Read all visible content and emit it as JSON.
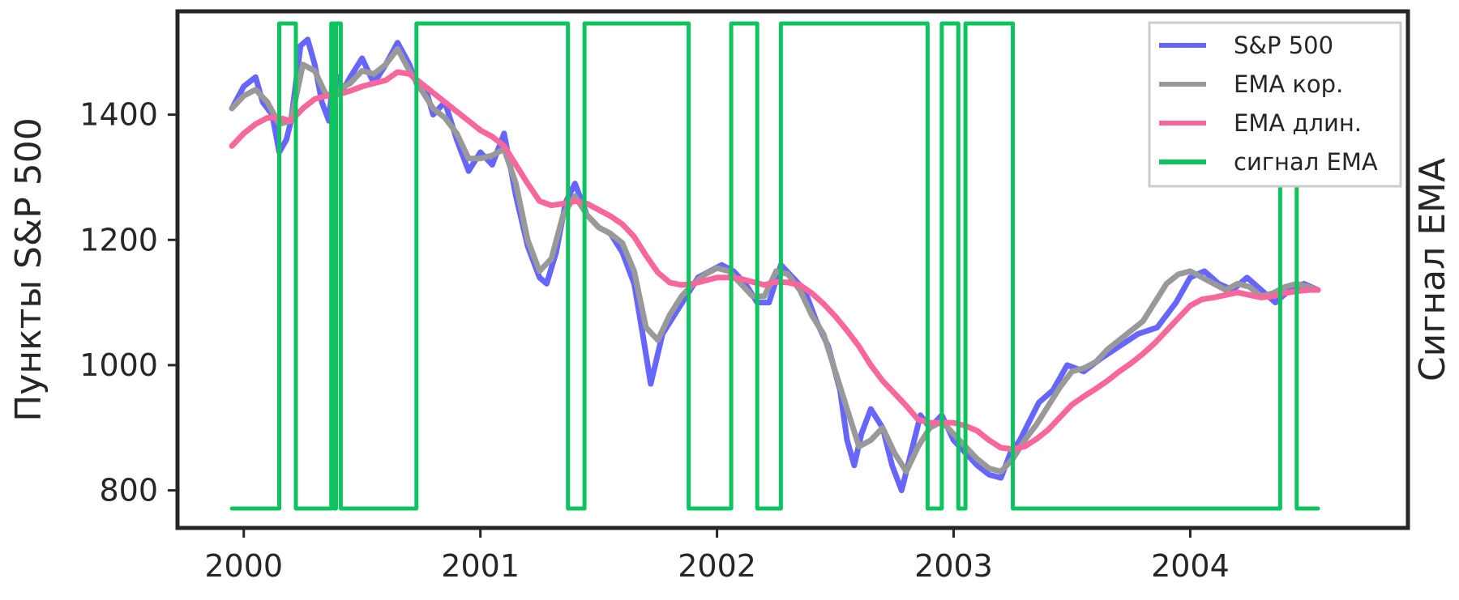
{
  "chart_data": {
    "type": "line",
    "title": "",
    "xlabel": "",
    "ylabel": "Пункты S&P 500",
    "y2label": "Сигнал EMA",
    "xlim": [
      1999.72,
      2004.92
    ],
    "ylim": [
      740,
      1565
    ],
    "x_ticks": [
      {
        "value": 2000,
        "label": "2000"
      },
      {
        "value": 2001,
        "label": "2001"
      },
      {
        "value": 2002,
        "label": "2002"
      },
      {
        "value": 2003,
        "label": "2003"
      },
      {
        "value": 2004,
        "label": "2004"
      }
    ],
    "y_ticks": [
      {
        "value": 800,
        "label": "800"
      },
      {
        "value": 1000,
        "label": "1000"
      },
      {
        "value": 1200,
        "label": "1200"
      },
      {
        "value": 1400,
        "label": "1400"
      }
    ],
    "grid": false,
    "legend_position": "top-right",
    "series": [
      {
        "name": "S&P 500",
        "color": "#6666ff",
        "x": [
          1999.95,
          2000.0,
          2000.05,
          2000.08,
          2000.12,
          2000.15,
          2000.18,
          2000.2,
          2000.24,
          2000.27,
          2000.3,
          2000.33,
          2000.36,
          2000.38,
          2000.42,
          2000.45,
          2000.5,
          2000.55,
          2000.6,
          2000.65,
          2000.7,
          2000.73,
          2000.77,
          2000.8,
          2000.85,
          2000.9,
          2000.95,
          2001.0,
          2001.05,
          2001.1,
          2001.15,
          2001.2,
          2001.25,
          2001.28,
          2001.32,
          2001.36,
          2001.4,
          2001.45,
          2001.5,
          2001.55,
          2001.6,
          2001.65,
          2001.69,
          2001.72,
          2001.77,
          2001.82,
          2001.87,
          2001.92,
          2001.97,
          2002.02,
          2002.07,
          2002.12,
          2002.17,
          2002.22,
          2002.27,
          2002.32,
          2002.37,
          2002.42,
          2002.47,
          2002.52,
          2002.55,
          2002.58,
          2002.61,
          2002.65,
          2002.7,
          2002.74,
          2002.78,
          2002.82,
          2002.86,
          2002.9,
          2002.95,
          2003.0,
          2003.05,
          2003.1,
          2003.15,
          2003.2,
          2003.24,
          2003.28,
          2003.32,
          2003.36,
          2003.42,
          2003.48,
          2003.55,
          2003.62,
          2003.7,
          2003.78,
          2003.86,
          2003.94,
          2004.0,
          2004.06,
          2004.12,
          2004.18,
          2004.24,
          2004.3,
          2004.36,
          2004.42,
          2004.48,
          2004.54
        ],
        "y": [
          1410,
          1445,
          1460,
          1420,
          1400,
          1340,
          1360,
          1390,
          1510,
          1520,
          1480,
          1420,
          1390,
          1470,
          1440,
          1460,
          1490,
          1450,
          1480,
          1515,
          1480,
          1450,
          1440,
          1400,
          1420,
          1360,
          1310,
          1340,
          1320,
          1370,
          1270,
          1190,
          1140,
          1130,
          1180,
          1260,
          1290,
          1240,
          1220,
          1210,
          1180,
          1130,
          1040,
          970,
          1050,
          1080,
          1110,
          1140,
          1150,
          1160,
          1150,
          1130,
          1100,
          1100,
          1160,
          1140,
          1120,
          1070,
          1030,
          960,
          880,
          840,
          890,
          930,
          900,
          840,
          800,
          860,
          920,
          900,
          920,
          880,
          860,
          840,
          825,
          820,
          860,
          880,
          910,
          940,
          960,
          1000,
          990,
          1010,
          1030,
          1050,
          1060,
          1100,
          1140,
          1150,
          1130,
          1120,
          1140,
          1120,
          1100,
          1120,
          1130,
          1120
        ]
      },
      {
        "name": "EMA кор.",
        "color": "#999999",
        "x": [
          1999.95,
          2000.0,
          2000.05,
          2000.1,
          2000.15,
          2000.2,
          2000.25,
          2000.3,
          2000.35,
          2000.4,
          2000.45,
          2000.5,
          2000.55,
          2000.6,
          2000.65,
          2000.7,
          2000.75,
          2000.8,
          2000.85,
          2000.9,
          2000.95,
          2001.0,
          2001.05,
          2001.1,
          2001.15,
          2001.2,
          2001.25,
          2001.3,
          2001.35,
          2001.4,
          2001.45,
          2001.5,
          2001.55,
          2001.6,
          2001.65,
          2001.7,
          2001.75,
          2001.8,
          2001.85,
          2001.9,
          2001.95,
          2002.0,
          2002.05,
          2002.1,
          2002.15,
          2002.2,
          2002.25,
          2002.3,
          2002.35,
          2002.4,
          2002.45,
          2002.5,
          2002.55,
          2002.6,
          2002.65,
          2002.7,
          2002.75,
          2002.8,
          2002.85,
          2002.9,
          2002.95,
          2003.0,
          2003.05,
          2003.1,
          2003.15,
          2003.2,
          2003.25,
          2003.3,
          2003.35,
          2003.4,
          2003.45,
          2003.5,
          2003.55,
          2003.6,
          2003.65,
          2003.7,
          2003.75,
          2003.8,
          2003.85,
          2003.9,
          2003.95,
          2004.0,
          2004.05,
          2004.1,
          2004.15,
          2004.2,
          2004.25,
          2004.3,
          2004.35,
          2004.4,
          2004.45,
          2004.5,
          2004.54
        ],
        "y": [
          1410,
          1430,
          1440,
          1420,
          1385,
          1390,
          1480,
          1470,
          1430,
          1440,
          1450,
          1470,
          1465,
          1480,
          1505,
          1470,
          1440,
          1410,
          1395,
          1370,
          1330,
          1330,
          1335,
          1345,
          1290,
          1200,
          1150,
          1170,
          1240,
          1270,
          1240,
          1220,
          1210,
          1195,
          1150,
          1060,
          1040,
          1080,
          1110,
          1130,
          1145,
          1155,
          1150,
          1130,
          1110,
          1110,
          1150,
          1145,
          1120,
          1080,
          1050,
          990,
          930,
          870,
          880,
          900,
          860,
          830,
          870,
          900,
          910,
          890,
          870,
          850,
          835,
          830,
          850,
          880,
          905,
          935,
          965,
          990,
          995,
          1005,
          1025,
          1040,
          1055,
          1070,
          1100,
          1130,
          1145,
          1150,
          1140,
          1130,
          1120,
          1130,
          1125,
          1110,
          1115,
          1125,
          1130,
          1125,
          1120
        ]
      },
      {
        "name": "EMA длин.",
        "color": "#f7679b",
        "x": [
          1999.95,
          2000.0,
          2000.05,
          2000.1,
          2000.15,
          2000.2,
          2000.25,
          2000.3,
          2000.35,
          2000.4,
          2000.45,
          2000.5,
          2000.55,
          2000.6,
          2000.65,
          2000.7,
          2000.75,
          2000.8,
          2000.85,
          2000.9,
          2000.95,
          2001.0,
          2001.05,
          2001.1,
          2001.15,
          2001.2,
          2001.25,
          2001.3,
          2001.35,
          2001.4,
          2001.45,
          2001.5,
          2001.55,
          2001.6,
          2001.65,
          2001.7,
          2001.75,
          2001.8,
          2001.85,
          2001.9,
          2001.95,
          2002.0,
          2002.05,
          2002.1,
          2002.15,
          2002.2,
          2002.25,
          2002.3,
          2002.35,
          2002.4,
          2002.45,
          2002.5,
          2002.55,
          2002.6,
          2002.65,
          2002.7,
          2002.75,
          2002.8,
          2002.85,
          2002.9,
          2002.95,
          2003.0,
          2003.05,
          2003.1,
          2003.15,
          2003.2,
          2003.25,
          2003.3,
          2003.35,
          2003.4,
          2003.45,
          2003.5,
          2003.55,
          2003.6,
          2003.65,
          2003.7,
          2003.75,
          2003.8,
          2003.85,
          2003.9,
          2003.95,
          2004.0,
          2004.05,
          2004.1,
          2004.15,
          2004.2,
          2004.25,
          2004.3,
          2004.35,
          2004.4,
          2004.45,
          2004.5,
          2004.54
        ],
        "y": [
          1350,
          1370,
          1385,
          1395,
          1395,
          1390,
          1410,
          1425,
          1430,
          1432,
          1438,
          1445,
          1450,
          1455,
          1468,
          1465,
          1450,
          1435,
          1420,
          1405,
          1390,
          1375,
          1365,
          1350,
          1320,
          1290,
          1262,
          1255,
          1258,
          1262,
          1258,
          1248,
          1238,
          1225,
          1205,
          1175,
          1148,
          1132,
          1128,
          1130,
          1135,
          1140,
          1140,
          1138,
          1133,
          1128,
          1133,
          1132,
          1128,
          1115,
          1098,
          1078,
          1055,
          1030,
          1000,
          975,
          955,
          935,
          913,
          908,
          908,
          908,
          903,
          895,
          880,
          868,
          866,
          870,
          882,
          897,
          917,
          937,
          950,
          962,
          975,
          990,
          1003,
          1018,
          1035,
          1055,
          1075,
          1095,
          1105,
          1108,
          1112,
          1116,
          1112,
          1108,
          1110,
          1115,
          1118,
          1120,
          1120
        ]
      },
      {
        "name": "сигнал EMA",
        "color": "#0ec45f",
        "x": [
          1999.95,
          2000.15,
          2000.15,
          2000.22,
          2000.22,
          2000.37,
          2000.37,
          2000.38,
          2000.38,
          2000.39,
          2000.39,
          2000.41,
          2000.41,
          2000.43,
          2000.43,
          2000.73,
          2000.73,
          2001.37,
          2001.37,
          2001.44,
          2001.44,
          2001.88,
          2001.88,
          2002.06,
          2002.06,
          2002.17,
          2002.17,
          2002.27,
          2002.27,
          2002.89,
          2002.89,
          2002.95,
          2002.95,
          2003.02,
          2003.02,
          2003.05,
          2003.05,
          2003.25,
          2003.25,
          2004.38,
          2004.38,
          2004.45,
          2004.45,
          2004.54
        ],
        "y": [
          0,
          0,
          1,
          1,
          0,
          0,
          1,
          1,
          0,
          0,
          1,
          1,
          0,
          0,
          0,
          0,
          1,
          1,
          0,
          0,
          1,
          1,
          0,
          0,
          1,
          1,
          0,
          0,
          1,
          1,
          0,
          0,
          1,
          1,
          0,
          0,
          1,
          1,
          0,
          0,
          1,
          1,
          0,
          0
        ],
        "y2lim": [
          -0.04,
          1.025
        ]
      }
    ]
  }
}
